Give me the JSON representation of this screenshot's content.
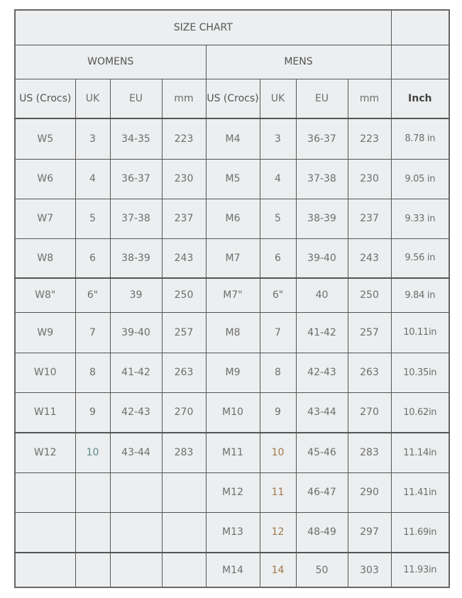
{
  "title": "SIZE CHART",
  "groups": {
    "womens": "WOMENS",
    "mens": "MENS"
  },
  "headers": [
    "US (Crocs)",
    "UK",
    "EU",
    "mm",
    "US (Crocs)",
    "UK",
    "EU",
    "mm",
    "Inch"
  ],
  "colors": {
    "background": "#eceeef",
    "text": "#6e6e6e",
    "border": "#555555",
    "accent_uk": "#a0784a"
  },
  "rows": [
    [
      "W5",
      "3",
      "34-35",
      "223",
      "M4",
      "3",
      "36-37",
      "223",
      "8.78 in"
    ],
    [
      "W6",
      "4",
      "36-37",
      "230",
      "M5",
      "4",
      "37-38",
      "230",
      "9.05 in"
    ],
    [
      "W7",
      "5",
      "37-38",
      "237",
      "M6",
      "5",
      "38-39",
      "237",
      "9.33 in"
    ],
    [
      "W8",
      "6",
      "38-39",
      "243",
      "M7",
      "6",
      "39-40",
      "243",
      "9.56 in"
    ],
    [
      "W8\"",
      "6\"",
      "39",
      "250",
      "M7\"",
      "6\"",
      "40",
      "250",
      "9.84 in"
    ],
    [
      "W9",
      "7",
      "39-40",
      "257",
      "M8",
      "7",
      "41-42",
      "257",
      "10.11in"
    ],
    [
      "W10",
      "8",
      "41-42",
      "263",
      "M9",
      "8",
      "42-43",
      "263",
      "10.35in"
    ],
    [
      "W11",
      "9",
      "42-43",
      "270",
      "M10",
      "9",
      "43-44",
      "270",
      "10.62in"
    ],
    [
      "W12",
      "10",
      "43-44",
      "283",
      "M11",
      "10",
      "45-46",
      "283",
      "11.14in"
    ],
    [
      "",
      "",
      "",
      "",
      "M12",
      "11",
      "46-47",
      "290",
      "11.41in"
    ],
    [
      "",
      "",
      "",
      "",
      "M13",
      "12",
      "48-49",
      "297",
      "11.69in"
    ],
    [
      "",
      "",
      "",
      "",
      "M14",
      "14",
      "50",
      "303",
      "11.93in"
    ]
  ]
}
